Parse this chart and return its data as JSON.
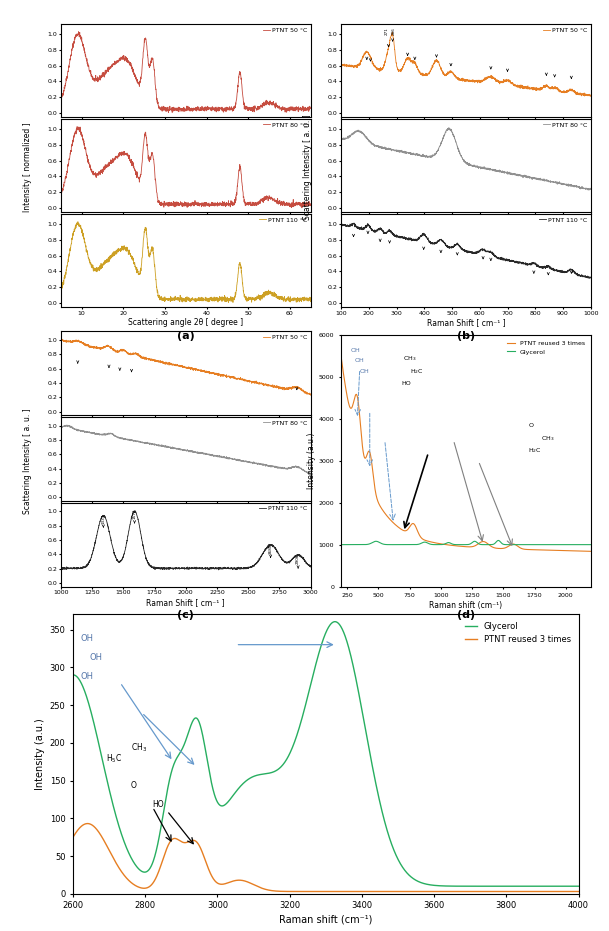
{
  "panel_a": {
    "xlabel": "Scattering angle 2θ [ degree ]",
    "ylabel": "Intensity [ normalized ]",
    "labels": [
      "PTNT 50 °C",
      "PTNT 80 °C",
      "PTNT 110 °C"
    ],
    "colors": [
      "#c0392b",
      "#c0392b",
      "#c8960c"
    ],
    "xrange": [
      5,
      65
    ]
  },
  "panel_b": {
    "xlabel": "Raman Shift [ cm⁻¹ ]",
    "ylabel": "Scattering Intensity [ a. u. ]",
    "labels": [
      "PTNT 50 °C",
      "PTNT 80 °C",
      "PTNT 110 °C"
    ],
    "colors": [
      "#e67e22",
      "#909090",
      "#282828"
    ],
    "xrange": [
      100,
      1000
    ]
  },
  "panel_c": {
    "xlabel": "Raman Shift [ cm⁻¹ ]",
    "ylabel": "Scattering Intensity [ a. u. ]",
    "labels": [
      "PTNT 50 °C",
      "PTNT 80 °C",
      "PTNT 110 °C"
    ],
    "colors": [
      "#e67e22",
      "#909090",
      "#282828"
    ],
    "xrange": [
      1000,
      3000
    ]
  },
  "panel_d": {
    "xlabel": "Raman shift (cm⁻¹)",
    "ylabel": "Intensity (a.u.)",
    "labels": [
      "PTNT reused 3 times",
      "Glycerol"
    ],
    "colors": [
      "#e67e22",
      "#27ae60"
    ],
    "xrange": [
      200,
      2200
    ],
    "yrange": [
      0,
      6000
    ]
  },
  "panel_e": {
    "xlabel": "Raman shift (cm⁻¹)",
    "ylabel": "Intensity (a.u.)",
    "labels": [
      "Glycerol",
      "PTNT reused 3 times"
    ],
    "colors": [
      "#27ae60",
      "#e67e22"
    ],
    "xrange": [
      2600,
      4000
    ],
    "yrange": [
      0,
      370
    ]
  }
}
